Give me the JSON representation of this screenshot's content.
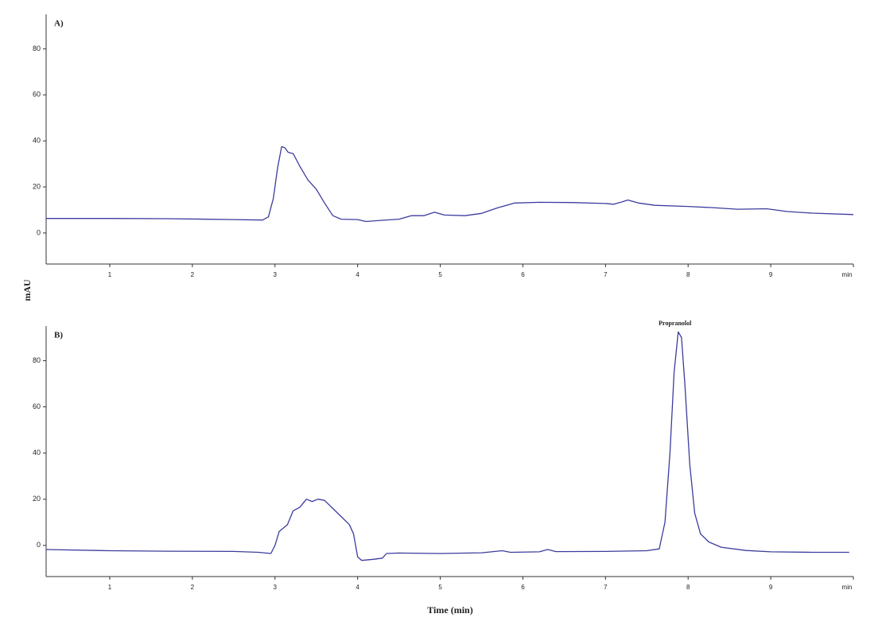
{
  "chart_data": [
    {
      "type": "line",
      "label": "A)",
      "ylabel": "mAU",
      "x": [
        0.23,
        1.0,
        1.7,
        2.5,
        2.85,
        2.92,
        2.98,
        3.03,
        3.08,
        3.12,
        3.16,
        3.22,
        3.3,
        3.4,
        3.5,
        3.6,
        3.7,
        3.8,
        4.0,
        4.1,
        4.3,
        4.5,
        4.65,
        4.8,
        4.93,
        5.05,
        5.3,
        5.5,
        5.7,
        5.9,
        6.2,
        6.6,
        7.0,
        7.1,
        7.2,
        7.27,
        7.4,
        7.6,
        8.0,
        8.3,
        8.6,
        8.95,
        9.2,
        9.5,
        10.0
      ],
      "series": [
        {
          "color": "#3c3c9e",
          "values": [
            6.3,
            6.3,
            6.2,
            5.8,
            5.6,
            7,
            15,
            28,
            37.5,
            37,
            35,
            34.5,
            29,
            23,
            19,
            13,
            7.5,
            6,
            5.8,
            5,
            5.5,
            6,
            7.5,
            7.5,
            9,
            7.8,
            7.5,
            8.5,
            11,
            13,
            13.3,
            13.2,
            12.8,
            12.5,
            13.5,
            14.3,
            13,
            12,
            11.5,
            11,
            10.3,
            10.5,
            9.3,
            8.6,
            8.0
          ]
        }
      ],
      "xlim": [
        0.23,
        10.0
      ],
      "xticks": [
        1,
        2,
        3,
        4,
        5,
        6,
        7,
        8,
        9,
        {
          "value": 10,
          "label": "min"
        }
      ],
      "ylim": [
        -13.5,
        95
      ],
      "yticks": [
        0,
        20,
        40,
        60,
        80
      ]
    },
    {
      "type": "line",
      "label": "B)",
      "xlabel": "Time (min)",
      "x": [
        0.23,
        1.0,
        1.7,
        2.5,
        2.8,
        2.95,
        3.0,
        3.05,
        3.15,
        3.22,
        3.3,
        3.38,
        3.45,
        3.52,
        3.6,
        3.7,
        3.8,
        3.9,
        3.95,
        4.0,
        4.05,
        4.2,
        4.3,
        4.35,
        4.5,
        5.0,
        5.5,
        5.75,
        5.85,
        6.2,
        6.3,
        6.4,
        7.0,
        7.5,
        7.65,
        7.72,
        7.78,
        7.83,
        7.88,
        7.92,
        7.96,
        8.02,
        8.08,
        8.15,
        8.25,
        8.4,
        8.7,
        9.0,
        9.5,
        9.95
      ],
      "series": [
        {
          "color": "#3c3c9e",
          "values": [
            -1.8,
            -2.3,
            -2.5,
            -2.6,
            -3.0,
            -3.5,
            0,
            6,
            9,
            15,
            16.5,
            20,
            19,
            20,
            19.5,
            16,
            12.5,
            9,
            5,
            -5,
            -6.5,
            -6,
            -5.5,
            -3.5,
            -3.3,
            -3.5,
            -3.2,
            -2.3,
            -3.0,
            -2.8,
            -1.8,
            -2.7,
            -2.6,
            -2.3,
            -1.5,
            10,
            40,
            75,
            92.5,
            90,
            70,
            35,
            14,
            5,
            1.5,
            -0.8,
            -2.2,
            -2.8,
            -3.0,
            -3.0
          ]
        }
      ],
      "annotations": [
        {
          "text": "Propranolol"
        }
      ],
      "xlim": [
        0.23,
        10.0
      ],
      "xticks": [
        1,
        2,
        3,
        4,
        5,
        6,
        7,
        8,
        9,
        {
          "value": 10,
          "label": "min"
        }
      ],
      "ylim": [
        -13.5,
        95
      ],
      "yticks": [
        0,
        20,
        40,
        60,
        80
      ]
    }
  ]
}
